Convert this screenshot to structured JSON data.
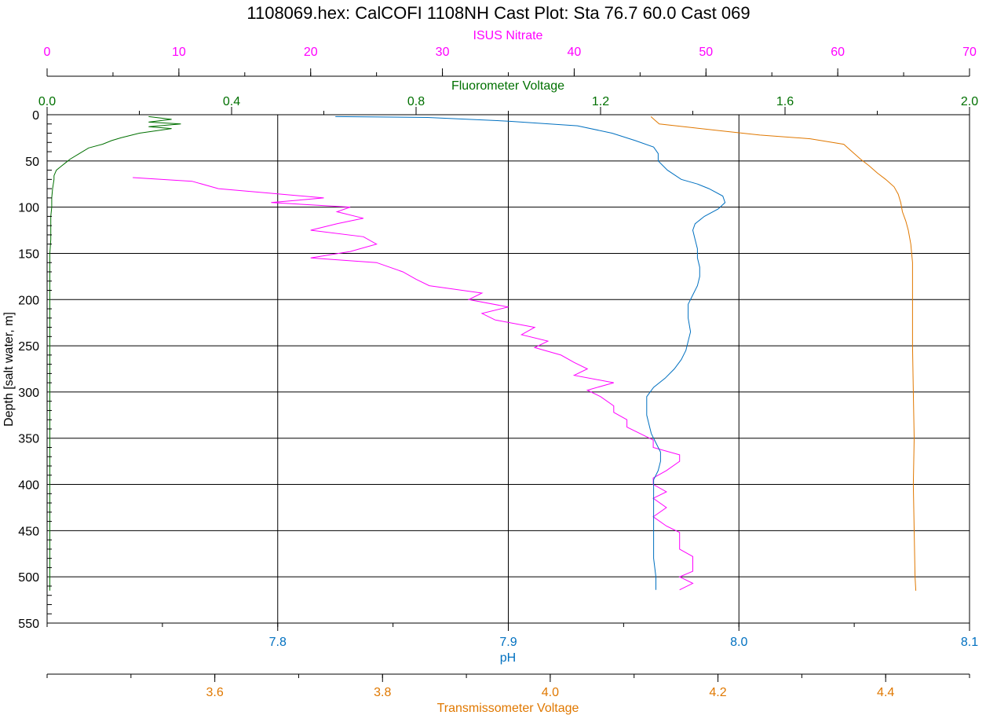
{
  "title": "1108069.hex: CalCOFI 1108NH Cast Plot: Sta 76.7 60.0 Cast 069",
  "colors": {
    "nitrate": "#ff00ff",
    "fluorometer": "#007000",
    "ph": "#0070c0",
    "transmissometer": "#e07800",
    "grid": "#000000"
  },
  "axes": {
    "nitrate": {
      "label": "ISUS Nitrate",
      "ticks": [
        "0",
        "10",
        "20",
        "30",
        "40",
        "50",
        "60",
        "70"
      ],
      "range": [
        0,
        70
      ]
    },
    "fluorometer": {
      "label": "Fluorometer Voltage",
      "ticks": [
        "0.0",
        "0.4",
        "0.8",
        "1.2",
        "1.6",
        "2.0"
      ],
      "range": [
        0,
        2.0
      ]
    },
    "depth": {
      "label": "Depth [salt water, m]",
      "ticks": [
        "0",
        "50",
        "100",
        "150",
        "200",
        "250",
        "300",
        "350",
        "400",
        "450",
        "500",
        "550"
      ],
      "range": [
        0,
        550
      ]
    },
    "ph": {
      "label": "pH",
      "ticks": [
        "7.8",
        "7.9",
        "8.0",
        "8.1"
      ],
      "range": [
        7.7,
        8.1
      ]
    },
    "transmissometer": {
      "label": "Transmissometer Voltage",
      "ticks": [
        "3.6",
        "3.8",
        "4.0",
        "4.2",
        "4.4"
      ],
      "range": [
        3.4,
        4.5
      ]
    }
  },
  "chart_data": {
    "type": "line",
    "title": "1108069.hex: CalCOFI 1108NH Cast Plot: Sta 76.7 60.0 Cast 069",
    "ylabel": "Depth [salt water, m]",
    "ylim": [
      0,
      550
    ],
    "y_inverted": true,
    "grid": true,
    "series": [
      {
        "name": "ISUS Nitrate",
        "axis": "nitrate",
        "points": [
          [
            6.5,
            68
          ],
          [
            11,
            72
          ],
          [
            13,
            80
          ],
          [
            17,
            85
          ],
          [
            21,
            90
          ],
          [
            17,
            95
          ],
          [
            23,
            100
          ],
          [
            22,
            105
          ],
          [
            24,
            112
          ],
          [
            22,
            118
          ],
          [
            20,
            125
          ],
          [
            24,
            132
          ],
          [
            25,
            140
          ],
          [
            23,
            148
          ],
          [
            20,
            155
          ],
          [
            25,
            160
          ],
          [
            27,
            170
          ],
          [
            28,
            178
          ],
          [
            29,
            185
          ],
          [
            33,
            193
          ],
          [
            32,
            200
          ],
          [
            35,
            208
          ],
          [
            33,
            215
          ],
          [
            34,
            222
          ],
          [
            37,
            230
          ],
          [
            36,
            238
          ],
          [
            38,
            245
          ],
          [
            37,
            252
          ],
          [
            39,
            260
          ],
          [
            40,
            268
          ],
          [
            41,
            275
          ],
          [
            40,
            282
          ],
          [
            43,
            290
          ],
          [
            41,
            298
          ],
          [
            42,
            305
          ],
          [
            43,
            315
          ],
          [
            43,
            322
          ],
          [
            44,
            330
          ],
          [
            44,
            338
          ],
          [
            45,
            345
          ],
          [
            46,
            352
          ],
          [
            46,
            360
          ],
          [
            48,
            368
          ],
          [
            48,
            375
          ],
          [
            47,
            385
          ],
          [
            46,
            393
          ],
          [
            46,
            400
          ],
          [
            47,
            408
          ],
          [
            46,
            415
          ],
          [
            47,
            425
          ],
          [
            46,
            435
          ],
          [
            47,
            445
          ],
          [
            48,
            452
          ],
          [
            48,
            460
          ],
          [
            48,
            470
          ],
          [
            49,
            478
          ],
          [
            49,
            486
          ],
          [
            49,
            494
          ],
          [
            48,
            500
          ],
          [
            49,
            507
          ],
          [
            48,
            514
          ]
        ]
      },
      {
        "name": "Fluorometer Voltage",
        "axis": "fluorometer",
        "points": [
          [
            0.22,
            2
          ],
          [
            0.27,
            5
          ],
          [
            0.22,
            8
          ],
          [
            0.29,
            10
          ],
          [
            0.22,
            13
          ],
          [
            0.27,
            15
          ],
          [
            0.2,
            20
          ],
          [
            0.16,
            25
          ],
          [
            0.14,
            28
          ],
          [
            0.12,
            32
          ],
          [
            0.09,
            36
          ],
          [
            0.07,
            42
          ],
          [
            0.05,
            48
          ],
          [
            0.04,
            52
          ],
          [
            0.03,
            56
          ],
          [
            0.02,
            60
          ],
          [
            0.015,
            66
          ],
          [
            0.015,
            70
          ],
          [
            0.012,
            80
          ],
          [
            0.01,
            90
          ],
          [
            0.01,
            100
          ],
          [
            0.008,
            110
          ],
          [
            0.008,
            120
          ],
          [
            0.008,
            135
          ],
          [
            0.006,
            150
          ],
          [
            0.006,
            200
          ],
          [
            0.006,
            250
          ],
          [
            0.006,
            300
          ],
          [
            0.006,
            350
          ],
          [
            0.006,
            400
          ],
          [
            0.006,
            450
          ],
          [
            0.006,
            500
          ],
          [
            0.006,
            515
          ]
        ]
      },
      {
        "name": "pH",
        "axis": "ph",
        "points": [
          [
            7.825,
            2
          ],
          [
            7.865,
            3
          ],
          [
            7.9,
            7
          ],
          [
            7.93,
            12
          ],
          [
            7.945,
            20
          ],
          [
            7.955,
            28
          ],
          [
            7.963,
            35
          ],
          [
            7.965,
            42
          ],
          [
            7.965,
            50
          ],
          [
            7.969,
            60
          ],
          [
            7.975,
            70
          ],
          [
            7.982,
            75
          ],
          [
            7.987,
            80
          ],
          [
            7.993,
            88
          ],
          [
            7.994,
            95
          ],
          [
            7.991,
            102
          ],
          [
            7.985,
            110
          ],
          [
            7.981,
            118
          ],
          [
            7.98,
            125
          ],
          [
            7.981,
            135
          ],
          [
            7.982,
            145
          ],
          [
            7.982,
            155
          ],
          [
            7.983,
            165
          ],
          [
            7.983,
            175
          ],
          [
            7.982,
            185
          ],
          [
            7.98,
            195
          ],
          [
            7.978,
            205
          ],
          [
            7.978,
            220
          ],
          [
            7.979,
            235
          ],
          [
            7.978,
            245
          ],
          [
            7.977,
            255
          ],
          [
            7.975,
            265
          ],
          [
            7.972,
            275
          ],
          [
            7.968,
            285
          ],
          [
            7.963,
            295
          ],
          [
            7.96,
            305
          ],
          [
            7.96,
            315
          ],
          [
            7.96,
            325
          ],
          [
            7.961,
            335
          ],
          [
            7.962,
            345
          ],
          [
            7.964,
            355
          ],
          [
            7.966,
            365
          ],
          [
            7.966,
            375
          ],
          [
            7.965,
            385
          ],
          [
            7.963,
            395
          ],
          [
            7.963,
            405
          ],
          [
            7.963,
            420
          ],
          [
            7.963,
            440
          ],
          [
            7.963,
            460
          ],
          [
            7.963,
            480
          ],
          [
            7.964,
            500
          ],
          [
            7.964,
            514
          ]
        ]
      },
      {
        "name": "Transmissometer Voltage",
        "axis": "transmissometer",
        "points": [
          [
            4.12,
            2
          ],
          [
            4.125,
            6
          ],
          [
            4.13,
            10
          ],
          [
            4.17,
            14
          ],
          [
            4.21,
            18
          ],
          [
            4.25,
            22
          ],
          [
            4.31,
            26
          ],
          [
            4.35,
            32
          ],
          [
            4.36,
            40
          ],
          [
            4.37,
            48
          ],
          [
            4.38,
            55
          ],
          [
            4.39,
            63
          ],
          [
            4.4,
            70
          ],
          [
            4.41,
            78
          ],
          [
            4.415,
            86
          ],
          [
            4.418,
            95
          ],
          [
            4.42,
            105
          ],
          [
            4.424,
            115
          ],
          [
            4.427,
            125
          ],
          [
            4.43,
            140
          ],
          [
            4.432,
            160
          ],
          [
            4.432,
            200
          ],
          [
            4.432,
            250
          ],
          [
            4.433,
            300
          ],
          [
            4.434,
            350
          ],
          [
            4.433,
            400
          ],
          [
            4.434,
            450
          ],
          [
            4.435,
            500
          ],
          [
            4.436,
            515
          ]
        ]
      }
    ]
  }
}
